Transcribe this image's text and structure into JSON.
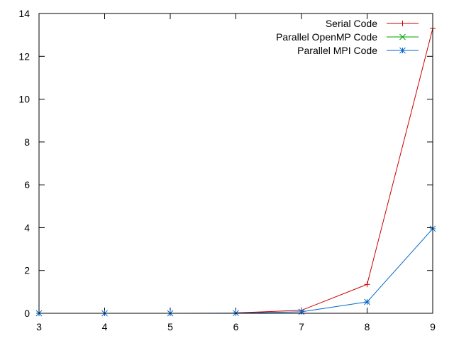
{
  "chart_data": {
    "type": "line",
    "title": "",
    "xlabel": "",
    "ylabel": "",
    "xlim": [
      3,
      9
    ],
    "ylim": [
      0,
      14
    ],
    "x_ticks": [
      "3",
      "4",
      "5",
      "6",
      "7",
      "8",
      "9"
    ],
    "y_ticks": [
      "0",
      "2",
      "4",
      "6",
      "8",
      "10",
      "12",
      "14"
    ],
    "grid": false,
    "legend_position": "top-right",
    "series": [
      {
        "name": "Serial Code",
        "color": "#cc0000",
        "marker": "plus",
        "x": [
          6,
          7,
          8,
          9
        ],
        "y": [
          0.02,
          0.14,
          1.35,
          13.3
        ]
      },
      {
        "name": "Parallel OpenMP Code",
        "color": "#00a000",
        "marker": "cross",
        "x": [],
        "y": []
      },
      {
        "name": "Parallel MPI Code",
        "color": "#0066cc",
        "marker": "star",
        "x": [
          3,
          4,
          5,
          6,
          7,
          8,
          9
        ],
        "y": [
          0.0,
          0.0,
          0.0,
          0.01,
          0.07,
          0.53,
          3.95
        ]
      }
    ]
  }
}
